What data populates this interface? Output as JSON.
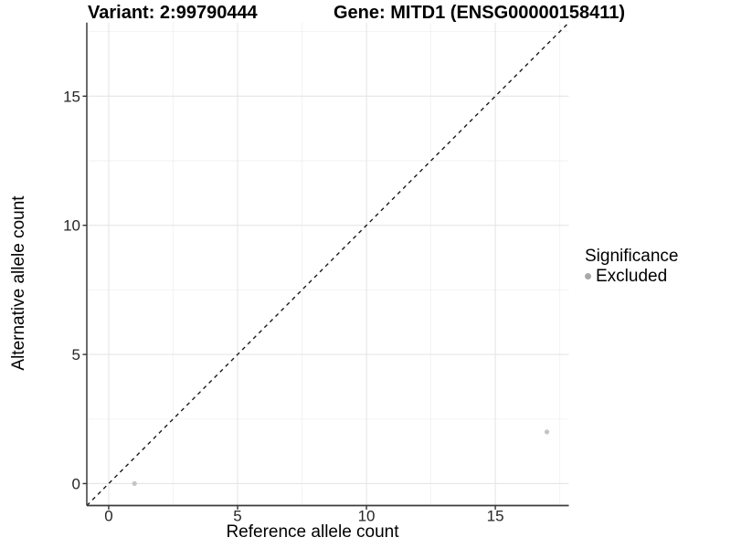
{
  "chart_data": {
    "type": "scatter",
    "title_variant": "Variant: 2:99790444",
    "title_gene": "Gene: MITD1 (ENSG00000158411)",
    "xlabel": "Reference allele count",
    "ylabel": "Alternative allele count",
    "xlim": [
      -0.85,
      17.85
    ],
    "ylim": [
      -0.85,
      17.85
    ],
    "xticks": [
      0,
      5,
      10,
      15
    ],
    "yticks": [
      0,
      5,
      10,
      15
    ],
    "xticks_minor": [
      2.5,
      7.5,
      12.5,
      17.5
    ],
    "yticks_minor": [
      2.5,
      7.5,
      12.5,
      17.5
    ],
    "grid": true,
    "points": [
      {
        "x": 1,
        "y": 0,
        "series": "Excluded"
      },
      {
        "x": 17,
        "y": 2,
        "series": "Excluded"
      }
    ],
    "identity_line": {
      "slope": 1,
      "intercept": 0,
      "style": "dashed"
    },
    "legend": {
      "title": "Significance",
      "position": "right",
      "items": [
        {
          "label": "Excluded",
          "color": "#a8a8a8"
        }
      ]
    },
    "colors": {
      "point": "#c4c4c4",
      "identity_line": "#1a1a1a",
      "grid_major": "#e6e6e6",
      "grid_minor": "#f2f2f2",
      "axis_line": "#3c3c3c",
      "tick_mark": "#333333",
      "tick_label": "#262626"
    }
  }
}
